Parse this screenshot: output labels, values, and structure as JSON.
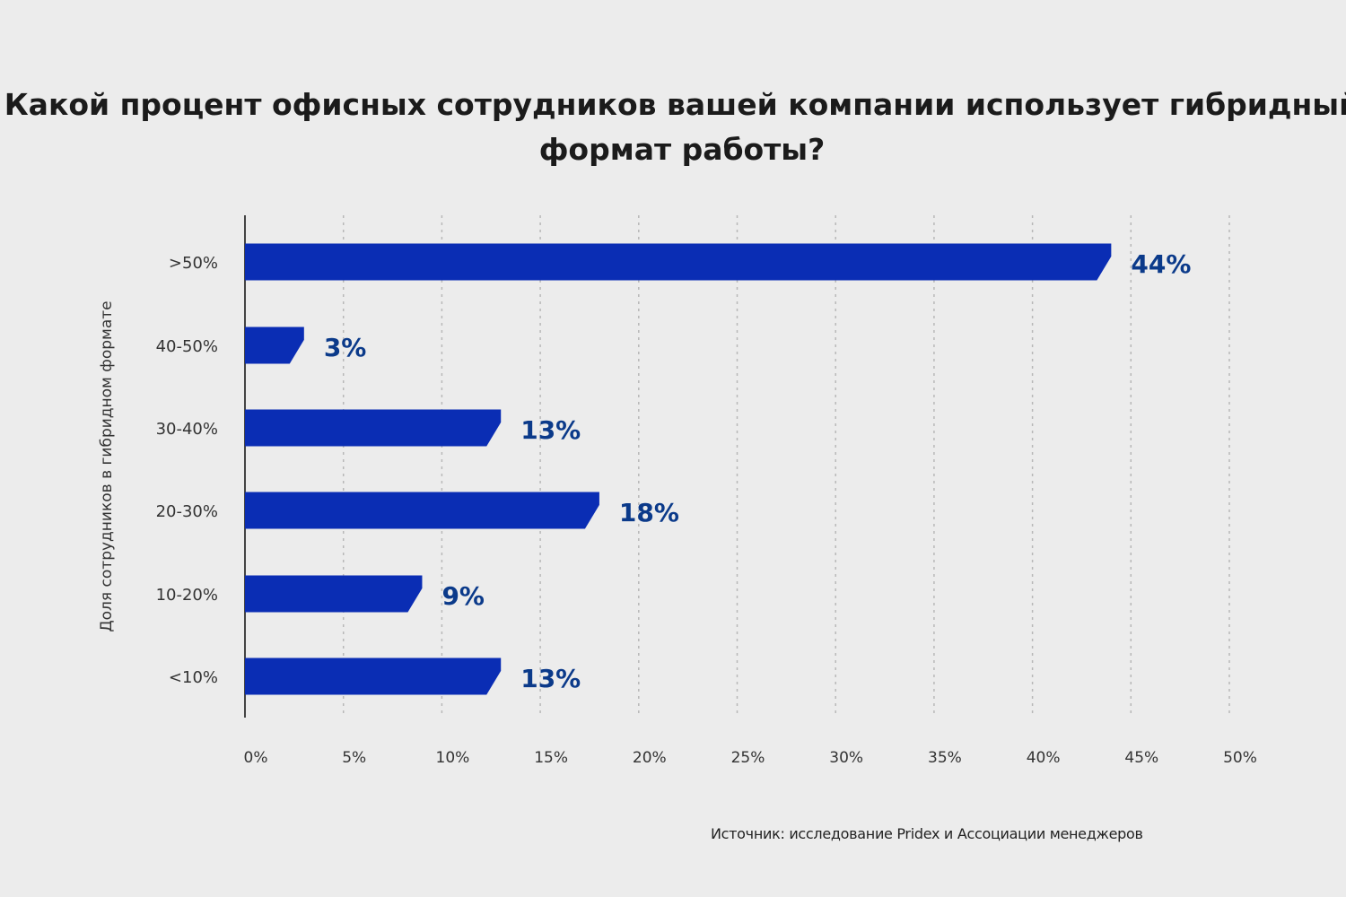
{
  "chart_data": {
    "type": "bar",
    "orientation": "horizontal",
    "title": "Какой процент офисных сотрудников вашей компании использует гибридный формат работы?",
    "ylabel": "Доля сотрудников в гибридном формате",
    "xlabel": "",
    "categories": [
      ">50%",
      "40-50%",
      "30-40%",
      "20-30%",
      "10-20%",
      "<10%"
    ],
    "values": [
      44,
      3,
      13,
      18,
      9,
      13
    ],
    "data_labels": [
      "44%",
      "3%",
      "13%",
      "18%",
      "9%",
      "13%"
    ],
    "xlim": [
      0,
      50
    ],
    "xticks": [
      "0%",
      "5%",
      "10%",
      "15%",
      "20%",
      "25%",
      "30%",
      "35%",
      "40%",
      "45%",
      "50%"
    ],
    "grid": "vertical dotted",
    "legend": "none",
    "colors": {
      "bar": "#0a2db4",
      "data_label": "#0b3a8a",
      "background": "#ececec"
    }
  },
  "source": "Источник: исследование Pridex и Ассоциации менеджеров"
}
